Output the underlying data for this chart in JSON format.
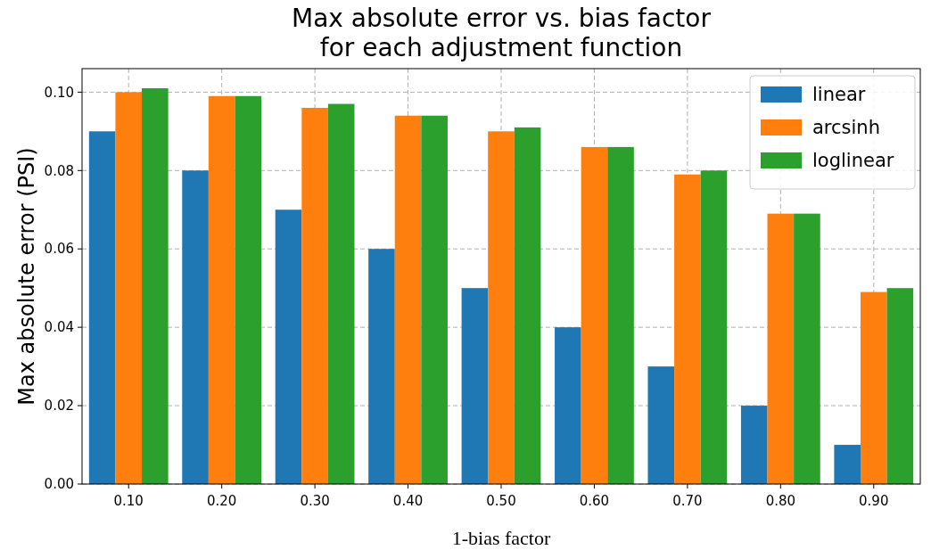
{
  "chart_data": {
    "type": "bar",
    "title": "Max absolute error vs. bias factor\nfor each adjustment function",
    "xlabel": "1-bias factor",
    "ylabel": "Max absolute error (PSI)",
    "categories": [
      "0.10",
      "0.20",
      "0.30",
      "0.40",
      "0.50",
      "0.60",
      "0.70",
      "0.80",
      "0.90"
    ],
    "series": [
      {
        "name": "linear",
        "color": "#1f77b4",
        "values": [
          0.09,
          0.08,
          0.07,
          0.06,
          0.05,
          0.04,
          0.03,
          0.02,
          0.01
        ]
      },
      {
        "name": "arcsinh",
        "color": "#ff7f0e",
        "values": [
          0.1,
          0.099,
          0.096,
          0.094,
          0.09,
          0.086,
          0.079,
          0.069,
          0.049
        ]
      },
      {
        "name": "loglinear",
        "color": "#2ca02c",
        "values": [
          0.101,
          0.099,
          0.097,
          0.094,
          0.091,
          0.086,
          0.08,
          0.069,
          0.05
        ]
      }
    ],
    "ylim": [
      0,
      0.106
    ],
    "yticks": [
      {
        "value": 0,
        "label": "0.00"
      },
      {
        "value": 0.02,
        "label": "0.02"
      },
      {
        "value": 0.04,
        "label": "0.04"
      },
      {
        "value": 0.06,
        "label": "0.06"
      },
      {
        "value": 0.08,
        "label": "0.08"
      },
      {
        "value": 0.1,
        "label": "0.10"
      }
    ],
    "grid": true,
    "legend": "top right"
  }
}
